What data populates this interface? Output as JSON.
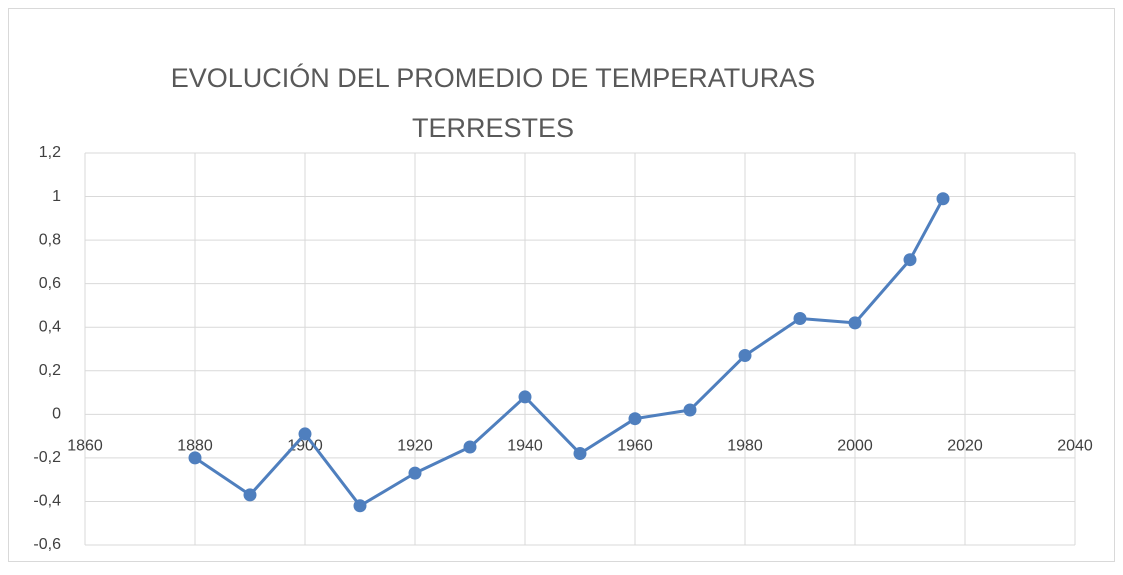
{
  "chart_data": {
    "type": "line",
    "title": [
      "EVOLUCIÓN DEL PROMEDIO DE TEMPERATURAS",
      "TERRESTES"
    ],
    "x": [
      1880,
      1890,
      1900,
      1910,
      1920,
      1930,
      1940,
      1950,
      1960,
      1970,
      1980,
      1990,
      2000,
      2010,
      2016
    ],
    "series": [
      {
        "color": "#4f7fbe",
        "values": [
          -0.2,
          -0.37,
          -0.09,
          -0.42,
          -0.27,
          -0.15,
          0.08,
          -0.18,
          -0.02,
          0.02,
          0.27,
          0.44,
          0.42,
          0.71,
          0.99
        ]
      }
    ],
    "xlim": [
      1860,
      2040
    ],
    "xticks": [
      1860,
      1880,
      1900,
      1920,
      1940,
      1960,
      1980,
      2000,
      2020,
      2040
    ],
    "ylim": [
      -0.6,
      1.2
    ],
    "yticks": [
      {
        "value": -0.6,
        "label": "-0,6"
      },
      {
        "value": -0.4,
        "label": "-0,4"
      },
      {
        "value": -0.2,
        "label": "-0,2"
      },
      0,
      {
        "value": 0.2,
        "label": "0,2"
      },
      {
        "value": 0.4,
        "label": "0,4"
      },
      {
        "value": 0.6,
        "label": "0,6"
      },
      {
        "value": 0.8,
        "label": "0,8"
      },
      1,
      {
        "value": 1.2,
        "label": "1,2"
      }
    ],
    "grid": true
  }
}
